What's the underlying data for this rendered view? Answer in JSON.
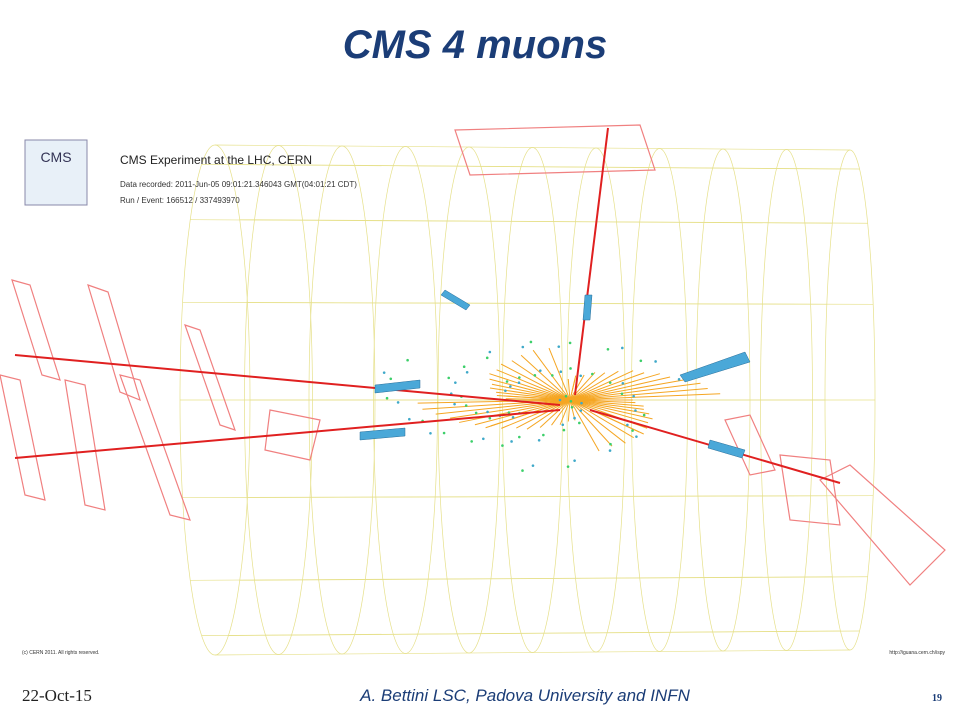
{
  "header": {
    "title": "CMS 4 muons"
  },
  "event_display": {
    "logo": "CMS",
    "experiment": "CMS Experiment at the LHC, CERN",
    "data_recorded": "Data recorded: 2011-Jun-05 09:01:21.346043 GMT(04:01:21 CDT)",
    "run_event": "Run / Event: 166512 / 337493970",
    "copyright": "(c) CERN 2011. All rights reserved.",
    "url": "http://iguana.cern.ch/ispy"
  },
  "footer": {
    "date": "22-Oct-15",
    "author": "A. Bettini LSC, Padova University and INFN",
    "page": "19"
  }
}
